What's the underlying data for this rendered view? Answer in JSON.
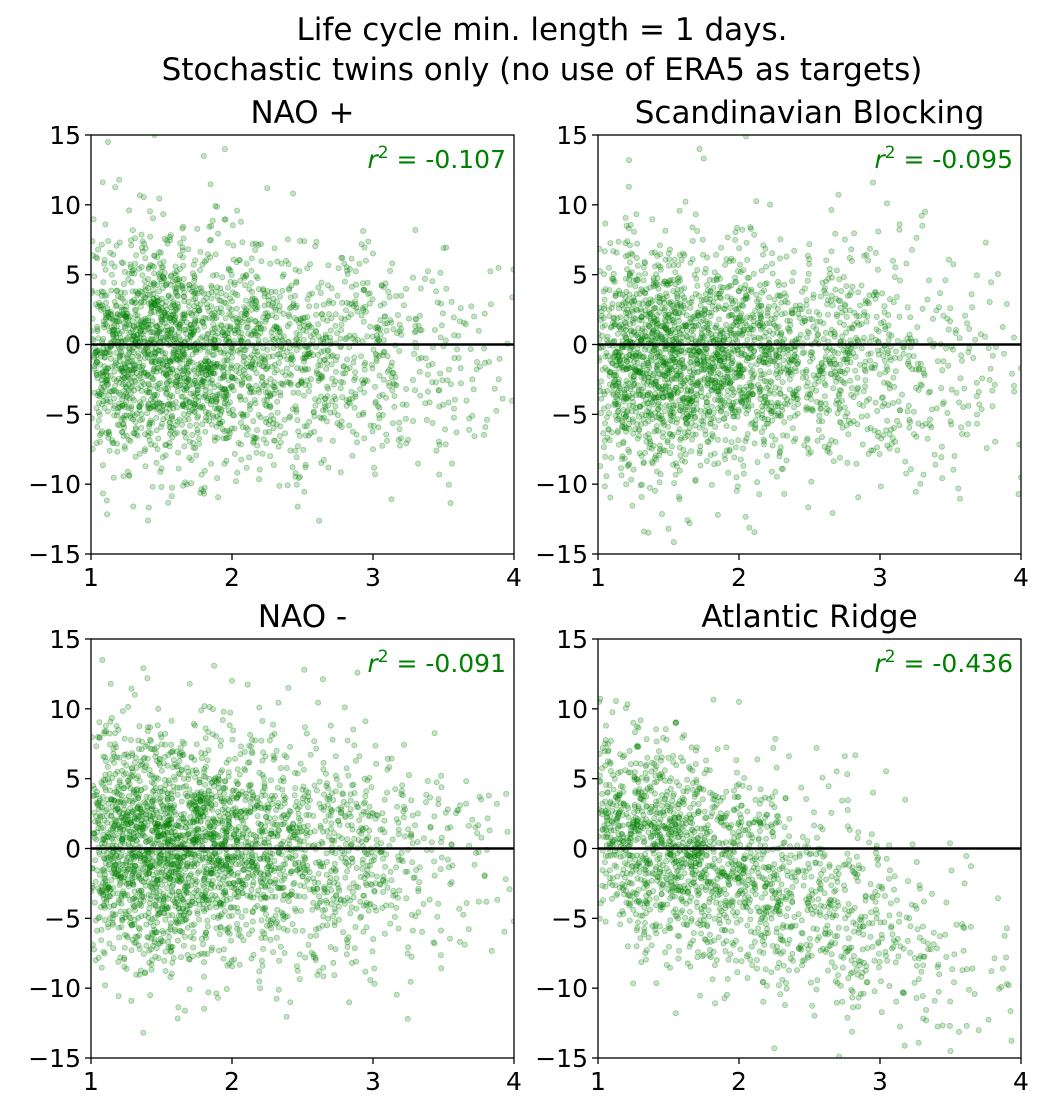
{
  "figure": {
    "suptitle_line1": "Life cycle min. length = 1 days.",
    "suptitle_line2": "Stochastic twins only (no use of ERA5 as targets)"
  },
  "chart_data": [
    {
      "type": "scatter",
      "title": "NAO +",
      "xlabel": "",
      "ylabel": "",
      "xlim": [
        1,
        4
      ],
      "ylim": [
        -15,
        15
      ],
      "xticks": [
        "1",
        "2",
        "3",
        "4"
      ],
      "yticks": [
        "15",
        "10",
        "5",
        "0",
        "−5",
        "−10",
        "−15"
      ],
      "reference_line_y": 0,
      "annotation": "-0.107",
      "annotation_label": "r",
      "annotation_exponent": "2",
      "color": "#008000",
      "n_points_approx": 2500,
      "distribution": "dense cluster near x 1.1–2.0, y −6 to 8; spread out toward x 3.5; occasional outliers to y 15 and −12",
      "points_sample": [
        [
          1.05,
          6.8
        ],
        [
          1.12,
          14.5
        ],
        [
          1.2,
          11.8
        ],
        [
          1.27,
          9.6
        ],
        [
          1.3,
          -11.6
        ],
        [
          1.45,
          15.0
        ],
        [
          1.5,
          -10.2
        ],
        [
          1.8,
          13.5
        ],
        [
          1.95,
          14.0
        ],
        [
          2.25,
          11.2
        ],
        [
          2.45,
          -9.2
        ],
        [
          2.7,
          1.0
        ],
        [
          2.8,
          4.5
        ],
        [
          2.95,
          6.0
        ],
        [
          3.0,
          -7.5
        ],
        [
          3.1,
          -6.9
        ],
        [
          3.2,
          3.5
        ],
        [
          3.3,
          8.2
        ],
        [
          3.42,
          -2.7
        ],
        [
          3.48,
          0.5
        ],
        [
          3.5,
          6.9
        ]
      ]
    },
    {
      "type": "scatter",
      "title": "Scandinavian Blocking",
      "xlabel": "",
      "ylabel": "",
      "xlim": [
        1,
        4
      ],
      "ylim": [
        -15,
        15
      ],
      "xticks": [
        "1",
        "2",
        "3",
        "4"
      ],
      "yticks": [
        "15",
        "10",
        "5",
        "0",
        "−5",
        "−10",
        "−15"
      ],
      "reference_line_y": 0,
      "annotation": "-0.095",
      "annotation_label": "r",
      "annotation_exponent": "2",
      "color": "#008000",
      "n_points_approx": 2600,
      "distribution": "dense cluster near x 1.1–2.1, y −7 to 6; sparse points up to x 4",
      "points_sample": [
        [
          1.22,
          13.2
        ],
        [
          1.5,
          -13.2
        ],
        [
          1.65,
          -12.8
        ],
        [
          1.72,
          14.0
        ],
        [
          1.85,
          -12.2
        ],
        [
          2.05,
          14.9
        ],
        [
          2.95,
          11.6
        ],
        [
          3.05,
          10.1
        ],
        [
          3.3,
          8.5
        ],
        [
          3.5,
          -5.5
        ],
        [
          3.65,
          3.6
        ],
        [
          3.75,
          7.3
        ],
        [
          3.8,
          -0.8
        ],
        [
          3.9,
          2.9
        ],
        [
          3.95,
          0.5
        ],
        [
          4.0,
          -1.7
        ]
      ]
    },
    {
      "type": "scatter",
      "title": "NAO -",
      "xlabel": "",
      "ylabel": "",
      "xlim": [
        1,
        4
      ],
      "ylim": [
        -15,
        15
      ],
      "xticks": [
        "1",
        "2",
        "3",
        "4"
      ],
      "yticks": [
        "15",
        "10",
        "5",
        "0",
        "−5",
        "−10",
        "−15"
      ],
      "reference_line_y": 0,
      "annotation": "-0.091",
      "annotation_label": "r",
      "annotation_exponent": "2",
      "color": "#008000",
      "n_points_approx": 2800,
      "distribution": "very dense cluster near x 1.0–1.9, y −6 to 8; sparse to x 3.3",
      "points_sample": [
        [
          1.08,
          13.5
        ],
        [
          1.1,
          -9.8
        ],
        [
          1.42,
          -10.5
        ],
        [
          1.7,
          11.8
        ],
        [
          2.0,
          12.0
        ],
        [
          2.2,
          -10.0
        ],
        [
          2.4,
          11.5
        ],
        [
          2.7,
          8.8
        ],
        [
          2.8,
          10.1
        ],
        [
          2.85,
          -8.2
        ],
        [
          3.0,
          2.5
        ],
        [
          3.1,
          4.0
        ],
        [
          3.2,
          -0.8
        ],
        [
          3.22,
          3.0
        ]
      ]
    },
    {
      "type": "scatter",
      "title": "Atlantic Ridge",
      "xlabel": "",
      "ylabel": "",
      "xlim": [
        1,
        4
      ],
      "ylim": [
        -15,
        15
      ],
      "xticks": [
        "1",
        "2",
        "3",
        "4"
      ],
      "yticks": [
        "15",
        "10",
        "5",
        "0",
        "−5",
        "−10",
        "−15"
      ],
      "reference_line_y": 0,
      "annotation": "-0.436",
      "annotation_label": "r",
      "annotation_exponent": "2",
      "color": "#008000",
      "n_points_approx": 1800,
      "distribution": "dense cluster near x 1.0–1.8, y −8 to 5; clear downward trend with spread to x 4 and y −14",
      "points_sample": [
        [
          1.25,
          9.0
        ],
        [
          1.55,
          9.0
        ],
        [
          2.0,
          10.5
        ],
        [
          2.25,
          -14.3
        ],
        [
          2.55,
          7.2
        ],
        [
          2.75,
          6.6
        ],
        [
          2.95,
          4.0
        ],
        [
          3.5,
          -14.5
        ],
        [
          3.6,
          -2.5
        ],
        [
          3.7,
          -13.0
        ],
        [
          3.9,
          -5.7
        ],
        [
          3.9,
          -9.7
        ]
      ]
    }
  ]
}
